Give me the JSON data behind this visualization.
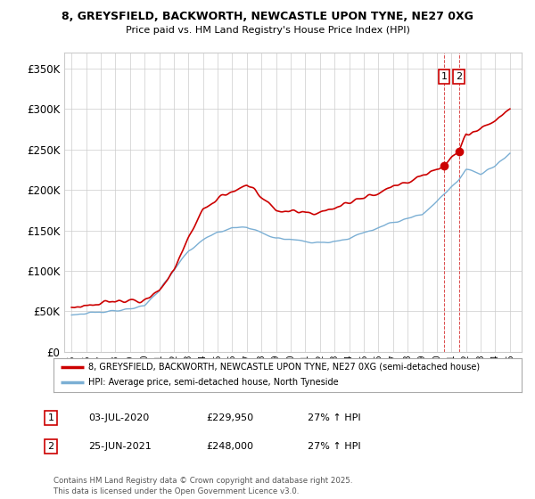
{
  "title1": "8, GREYSFIELD, BACKWORTH, NEWCASTLE UPON TYNE, NE27 0XG",
  "title2": "Price paid vs. HM Land Registry's House Price Index (HPI)",
  "ylabel_ticks": [
    "£0",
    "£50K",
    "£100K",
    "£150K",
    "£200K",
    "£250K",
    "£300K",
    "£350K"
  ],
  "ytick_values": [
    0,
    50000,
    100000,
    150000,
    200000,
    250000,
    300000,
    350000
  ],
  "ylim": [
    0,
    370000
  ],
  "xlim_start": 1994.5,
  "xlim_end": 2025.8,
  "legend_line1": "8, GREYSFIELD, BACKWORTH, NEWCASTLE UPON TYNE, NE27 0XG (semi-detached house)",
  "legend_line2": "HPI: Average price, semi-detached house, North Tyneside",
  "annotation1_label": "1",
  "annotation1_date": "03-JUL-2020",
  "annotation1_price": "£229,950",
  "annotation1_hpi": "27% ↑ HPI",
  "annotation2_label": "2",
  "annotation2_date": "25-JUN-2021",
  "annotation2_price": "£248,000",
  "annotation2_hpi": "27% ↑ HPI",
  "footnote": "Contains HM Land Registry data © Crown copyright and database right 2025.\nThis data is licensed under the Open Government Licence v3.0.",
  "sale1_x": 2020.5,
  "sale1_y": 229950,
  "sale2_x": 2021.5,
  "sale2_y": 248000,
  "line_color_red": "#cc0000",
  "line_color_blue": "#7bafd4",
  "background_color": "#ffffff",
  "grid_color": "#cccccc"
}
